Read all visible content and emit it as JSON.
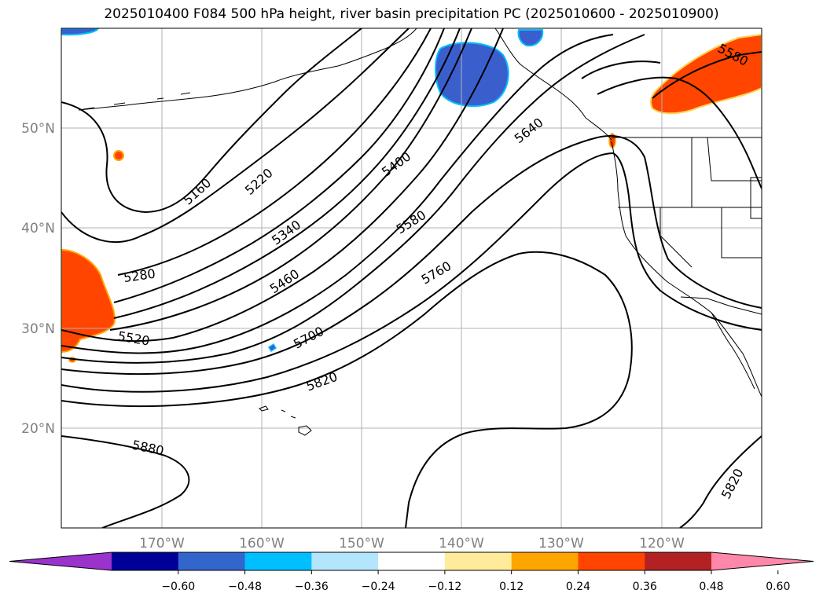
{
  "title": "2025010400 F084 500 hPa height, river basin precipitation PC (2025010600 - 2025010900)",
  "map": {
    "lon_ticks": [
      "170°W",
      "160°W",
      "150°W",
      "140°W",
      "130°W",
      "120°W"
    ],
    "lat_ticks": [
      "20°N",
      "30°N",
      "40°N",
      "50°N"
    ],
    "contour_labels": [
      "5160",
      "5220",
      "5280",
      "5340",
      "5400",
      "5460",
      "5520",
      "5580",
      "5580",
      "5640",
      "5700",
      "5760",
      "5820",
      "5820",
      "5880"
    ]
  },
  "colorbar": {
    "ticks": [
      "−0.60",
      "−0.48",
      "−0.36",
      "−0.24",
      "−0.12",
      "0.12",
      "0.24",
      "0.36",
      "0.48",
      "0.60"
    ],
    "colors": [
      "#9933cc",
      "#000099",
      "#3366cc",
      "#00bfff",
      "#b3e5fc",
      "#ffffff",
      "#ffeb99",
      "#ffa500",
      "#ff4500",
      "#b22222",
      "#ff88aa"
    ]
  }
}
